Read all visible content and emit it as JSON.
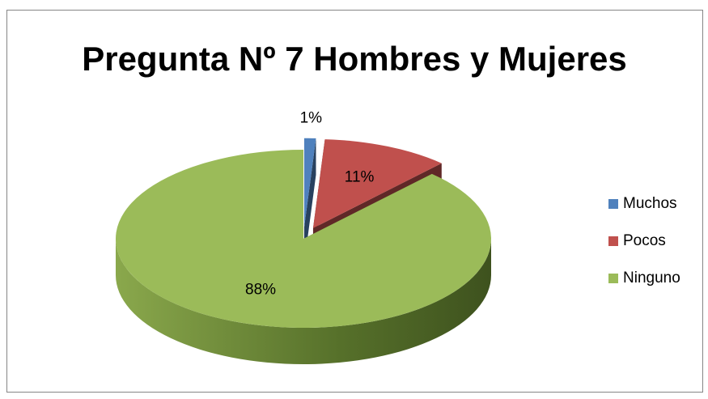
{
  "chart_data": {
    "type": "pie",
    "title": "Pregunta Nº 7 Hombres y Mujeres",
    "categories": [
      "Muchos",
      "Pocos",
      "Ninguno"
    ],
    "values": [
      1,
      11,
      88
    ],
    "value_labels": [
      "1%",
      "11%",
      "88%"
    ],
    "colors": [
      "#4f81bd",
      "#c0504d",
      "#9bbb59"
    ],
    "legend": "right"
  }
}
